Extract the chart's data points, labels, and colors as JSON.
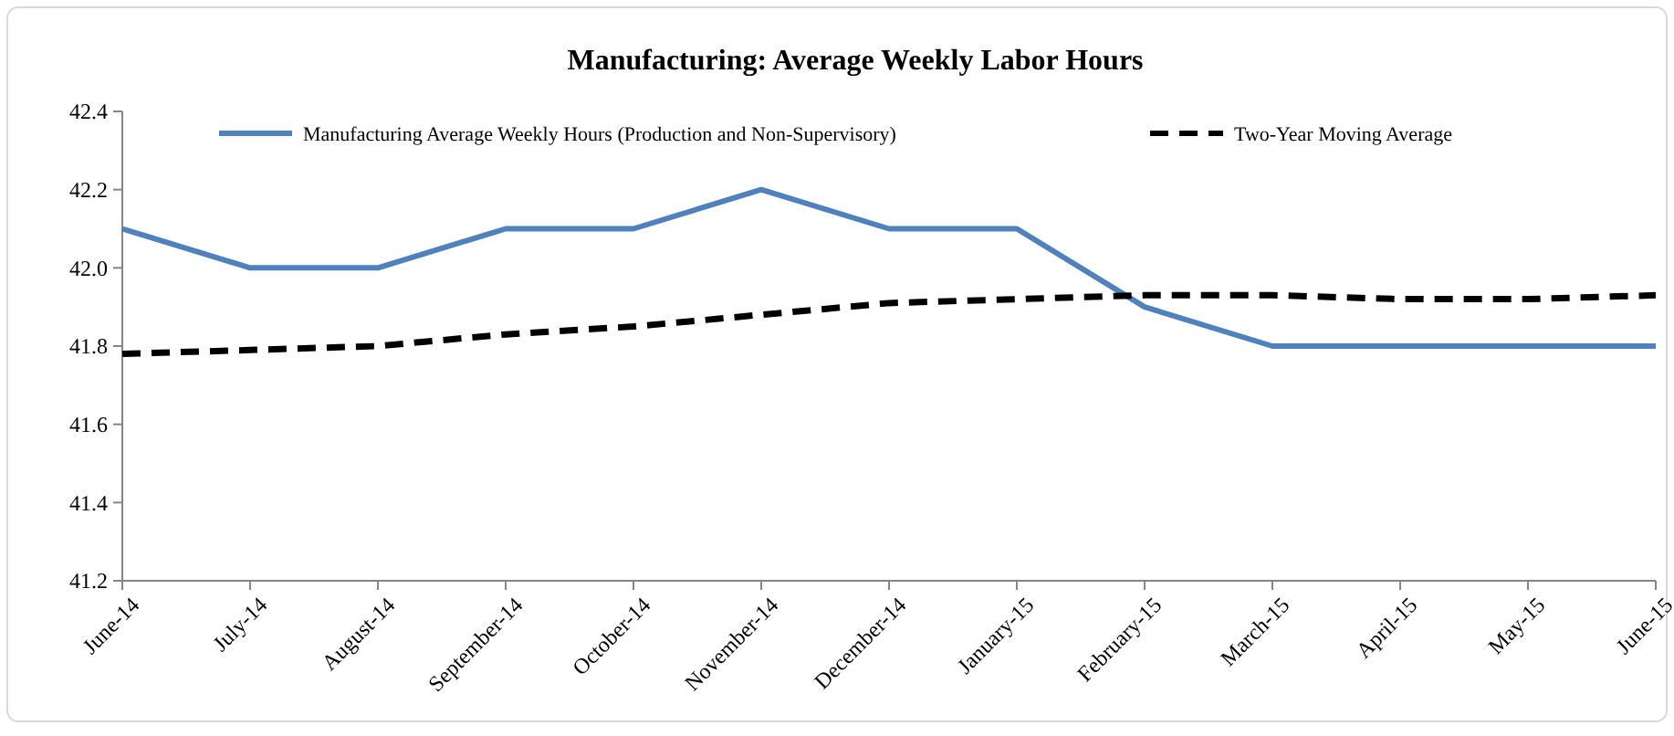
{
  "chart_data": {
    "type": "line",
    "title": "Manufacturing: Average Weekly Labor Hours",
    "categories": [
      "June-14",
      "July-14",
      "August-14",
      "September-14",
      "October-14",
      "November-14",
      "December-14",
      "January-15",
      "February-15",
      "March-15",
      "April-15",
      "May-15",
      "June-15"
    ],
    "series": [
      {
        "name": "Manufacturing Average Weekly Hours (Production and Non-Supervisory)",
        "color": "#4f81bd",
        "line_style": "solid",
        "values": [
          42.1,
          42.0,
          42.0,
          42.1,
          42.1,
          42.2,
          42.1,
          42.1,
          41.9,
          41.8,
          41.8,
          41.8,
          41.8
        ]
      },
      {
        "name": "Two-Year Moving Average",
        "color": "#000000",
        "line_style": "dashed",
        "values": [
          41.78,
          41.79,
          41.8,
          41.83,
          41.85,
          41.88,
          41.91,
          41.92,
          41.93,
          41.93,
          41.92,
          41.92,
          41.93
        ]
      }
    ],
    "ylim": [
      41.2,
      42.4
    ],
    "yticks": [
      41.2,
      41.4,
      41.6,
      41.8,
      {
        "value": 42,
        "label": "42.0"
      },
      42.2,
      42.4
    ],
    "grid": false,
    "legend": "top",
    "marker": "none"
  }
}
